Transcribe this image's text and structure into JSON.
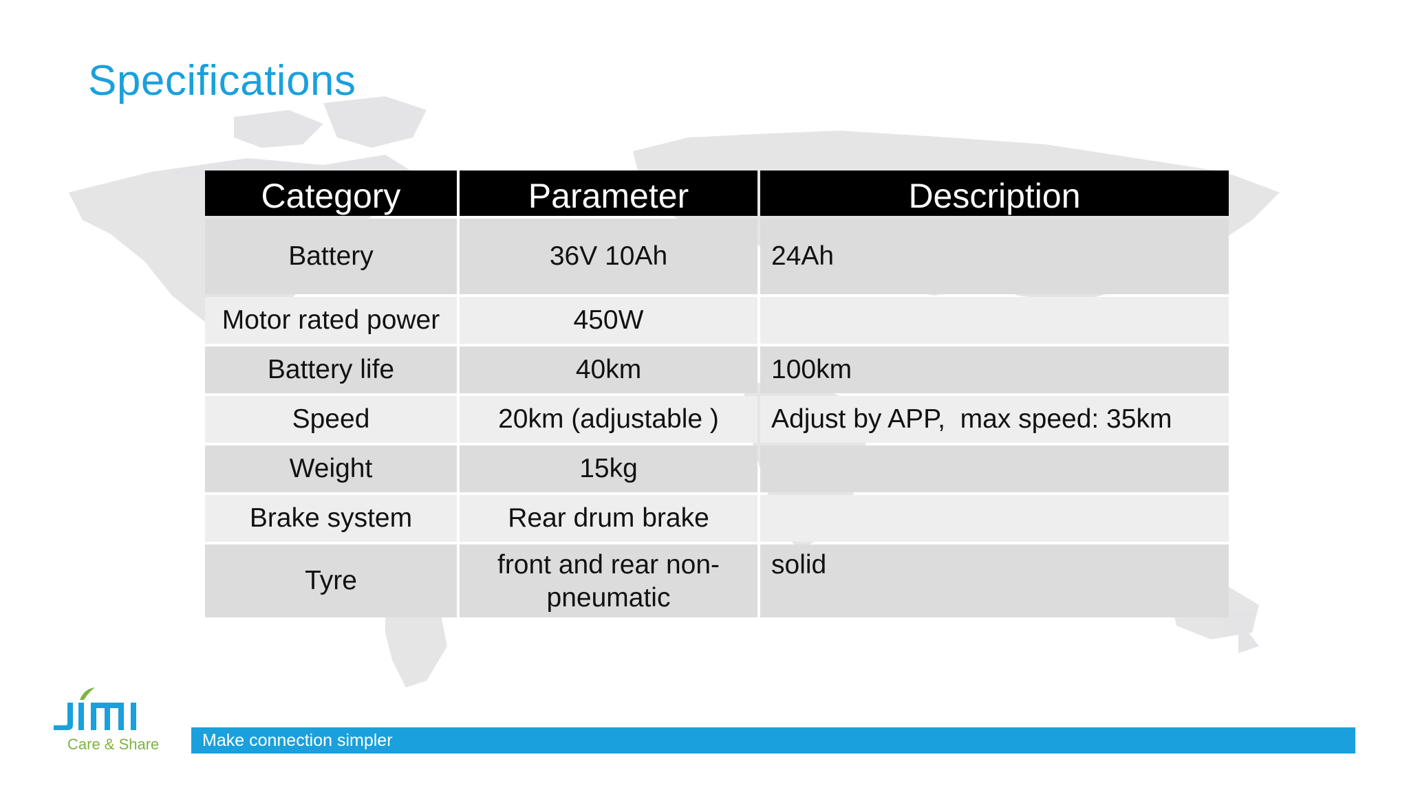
{
  "slide": {
    "title": "Specifications",
    "headers": [
      "Category",
      "Parameter",
      "Description"
    ],
    "rows": [
      {
        "category": "Battery",
        "parameter": "36V 10Ah",
        "description": "24Ah"
      },
      {
        "category": "Motor rated power",
        "parameter": "450W",
        "description": ""
      },
      {
        "category": "Battery life",
        "parameter": "40km",
        "description": "100km"
      },
      {
        "category": "Speed",
        "parameter": "20km (adjustable )",
        "description": "Adjust by APP,  max speed: 35km"
      },
      {
        "category": "Weight",
        "parameter": "15kg",
        "description": ""
      },
      {
        "category": "Brake system",
        "parameter": "Rear drum brake",
        "description": ""
      },
      {
        "category": "Tyre",
        "parameter": "front and rear non-pneumatic",
        "description": "solid"
      }
    ]
  },
  "footer": {
    "logo_text": "JIMI",
    "logo_subtext": "Care & Share",
    "tagline": "Make connection simpler"
  },
  "colors": {
    "accent": "#1aa0dc",
    "logo_green": "#7cb342",
    "header_bg": "#000000"
  },
  "icons": [
    "world-map-background",
    "jimi-logo"
  ]
}
